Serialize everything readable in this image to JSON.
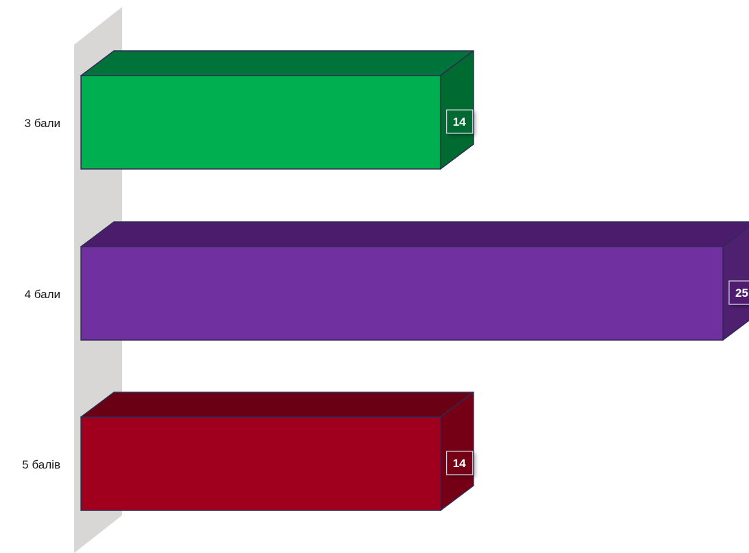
{
  "chart_data": {
    "type": "bar",
    "orientation": "horizontal",
    "style": "3d",
    "categories": [
      "3 бали",
      "4 бали",
      "5 балів"
    ],
    "values": [
      14,
      25,
      14
    ],
    "data_labels": [
      "14",
      "25",
      "14"
    ],
    "xlim": [
      0,
      25
    ],
    "grid": false,
    "legend": "none",
    "colors": {
      "3 бали": {
        "front": "#00b050",
        "top": "#00733a",
        "side": "#006b30"
      },
      "4 бали": {
        "front": "#7030a0",
        "top": "#4b1c6b",
        "side": "#4f1f70"
      },
      "5 балів": {
        "front": "#a0001e",
        "top": "#6a0014",
        "side": "#750016"
      }
    },
    "axis_wall_color": "#d9d6d6"
  }
}
